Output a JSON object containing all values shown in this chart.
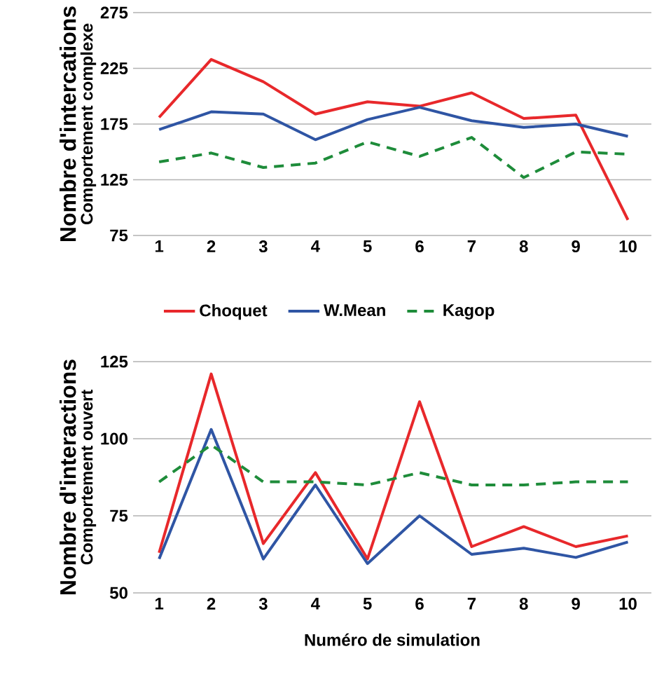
{
  "chart_data": [
    {
      "type": "line",
      "ylabel": "Nombre d'intercations",
      "annotations": [
        "Comportement complexe"
      ],
      "categories": [
        "1",
        "2",
        "3",
        "4",
        "5",
        "6",
        "7",
        "8",
        "9",
        "10"
      ],
      "ylim": [
        75,
        275
      ],
      "yticks": [
        75,
        125,
        175,
        225,
        275
      ],
      "grid": "y",
      "legend": "bottom",
      "series": [
        {
          "name": "Choquet",
          "color": "#e8282b",
          "line_style": "solid",
          "values": [
            181,
            233,
            213,
            184,
            195,
            191,
            203,
            180,
            183,
            89
          ]
        },
        {
          "name": "W.Mean",
          "color": "#2f55a4",
          "line_style": "solid",
          "values": [
            170,
            186,
            184,
            161,
            179,
            190,
            178,
            172,
            175,
            164
          ]
        },
        {
          "name": "Kagop",
          "color": "#1e8c3a",
          "line_style": "dashed",
          "values": [
            141,
            149,
            136,
            140,
            159,
            146,
            163,
            127,
            150,
            148
          ]
        }
      ]
    },
    {
      "type": "line",
      "ylabel": "Nombre d'interactions",
      "xlabel": "Numéro de simulation",
      "annotations": [
        "Comportement ouvert"
      ],
      "categories": [
        "1",
        "2",
        "3",
        "4",
        "5",
        "6",
        "7",
        "8",
        "9",
        "10"
      ],
      "ylim": [
        50,
        125
      ],
      "yticks": [
        50,
        75,
        100,
        125
      ],
      "grid": "y",
      "series": [
        {
          "color": "#e8282b",
          "line_style": "solid",
          "values": [
            63,
            121,
            66,
            89,
            61,
            112,
            65,
            71.5,
            65,
            68.5
          ]
        },
        {
          "color": "#2f55a4",
          "line_style": "solid",
          "values": [
            61,
            103,
            61,
            85,
            59.5,
            75,
            62.5,
            64.5,
            61.5,
            66.5
          ]
        },
        {
          "color": "#1e8c3a",
          "line_style": "dashed",
          "values": [
            86,
            98,
            86,
            86,
            85,
            89,
            85,
            85,
            86,
            86
          ]
        }
      ]
    }
  ]
}
